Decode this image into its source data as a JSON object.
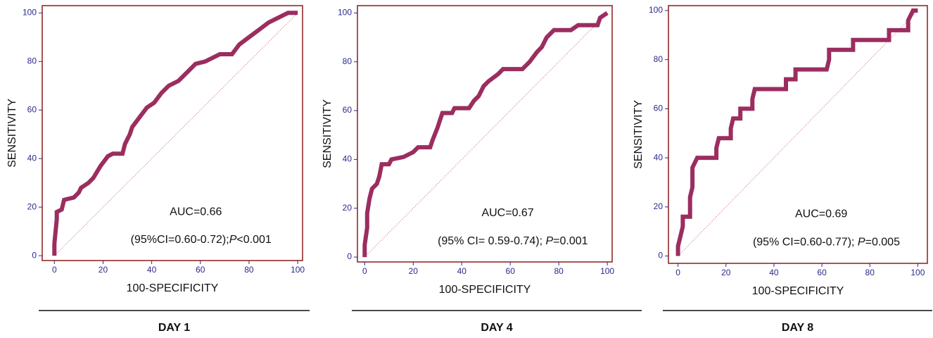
{
  "chart_data": [
    {
      "type": "line",
      "caption": "DAY 1",
      "xlabel": "100-SPECIFICITY",
      "ylabel": "SENSITIVITY",
      "auc": "AUC=0.66",
      "ci": "(95%CI=0.60-0.72);",
      "p_symbol": "P",
      "p_value": "<0.001",
      "color": "#9b2d5f",
      "reference_line": {
        "x": [
          0,
          100
        ],
        "y": [
          0,
          100
        ]
      },
      "x": [
        0,
        0,
        0.5,
        1,
        1,
        3,
        4,
        8,
        10,
        11,
        14,
        16,
        19,
        22,
        24,
        28,
        29,
        31,
        32,
        35,
        38,
        41,
        44,
        47,
        51,
        55,
        58,
        62,
        66,
        68,
        73,
        76,
        80,
        84,
        88,
        92,
        96,
        100
      ],
      "values": [
        0,
        5,
        10,
        15,
        18,
        19,
        23,
        24,
        26,
        28,
        30,
        32,
        37,
        41,
        42,
        42,
        46,
        50,
        53,
        57,
        61,
        63,
        67,
        70,
        72,
        76,
        79,
        80,
        82,
        83,
        83,
        87,
        90,
        93,
        96,
        98,
        100,
        100
      ],
      "xlim": [
        -5,
        102
      ],
      "ylim": [
        -2,
        103
      ],
      "xticks": [
        0,
        20,
        40,
        60,
        80,
        100
      ],
      "yticks": [
        0,
        20,
        40,
        60,
        80,
        100
      ]
    },
    {
      "type": "line",
      "caption": "DAY 4",
      "xlabel": "100-SPECIFICITY",
      "ylabel": "SENSITIVITY",
      "auc": "AUC=0.67",
      "ci": "(95% CI= 0.59-0.74); ",
      "p_symbol": "P",
      "p_value": "=0.001",
      "color": "#9b2d5f",
      "reference_line": {
        "x": [
          0,
          100
        ],
        "y": [
          0,
          100
        ]
      },
      "x": [
        0,
        0,
        1,
        1,
        2,
        3,
        5,
        6,
        7,
        10,
        11,
        16,
        20,
        22,
        27,
        28,
        30,
        31,
        32,
        36,
        37,
        43,
        45,
        47,
        49,
        51,
        55,
        57,
        65,
        68,
        71,
        73,
        75,
        78,
        85,
        88,
        96,
        97,
        100
      ],
      "values": [
        0,
        5,
        12,
        18,
        24,
        28,
        30,
        33,
        38,
        38,
        40,
        41,
        43,
        45,
        45,
        48,
        53,
        56,
        59,
        59,
        61,
        61,
        64,
        66,
        70,
        72,
        75,
        77,
        77,
        80,
        84,
        86,
        90,
        93,
        93,
        95,
        95,
        98,
        100
      ],
      "xlim": [
        -3,
        102
      ],
      "ylim": [
        -2,
        103
      ],
      "xticks": [
        0,
        20,
        40,
        60,
        80,
        100
      ],
      "yticks": [
        0,
        20,
        40,
        60,
        80,
        100
      ]
    },
    {
      "type": "line",
      "caption": "DAY 8",
      "xlabel": "100-SPECIFICITY",
      "ylabel": "SENSITIVITY",
      "auc": "AUC=0.69",
      "ci": "(95% CI=0.60-0.77); ",
      "p_symbol": "P",
      "p_value": "=0.005",
      "color": "#9b2d5f",
      "reference_line": {
        "x": [
          0,
          100
        ],
        "y": [
          0,
          100
        ]
      },
      "x": [
        0,
        0,
        1,
        2,
        2,
        5,
        5,
        6,
        6,
        8,
        16,
        16,
        17,
        22,
        22,
        23,
        26,
        26,
        31,
        31,
        32,
        45,
        45,
        49,
        49,
        62,
        63,
        63,
        73,
        73,
        88,
        88,
        96,
        96,
        98,
        100
      ],
      "values": [
        0,
        4,
        8,
        12,
        16,
        16,
        24,
        28,
        36,
        40,
        40,
        44,
        48,
        48,
        52,
        56,
        56,
        60,
        60,
        64,
        68,
        68,
        72,
        72,
        76,
        76,
        80,
        84,
        84,
        88,
        88,
        92,
        92,
        96,
        100,
        100
      ],
      "xlim": [
        -4,
        104
      ],
      "ylim": [
        -3,
        102
      ],
      "xticks": [
        0,
        20,
        40,
        60,
        80,
        100
      ],
      "yticks": [
        0,
        20,
        40,
        60,
        80,
        100
      ]
    }
  ]
}
